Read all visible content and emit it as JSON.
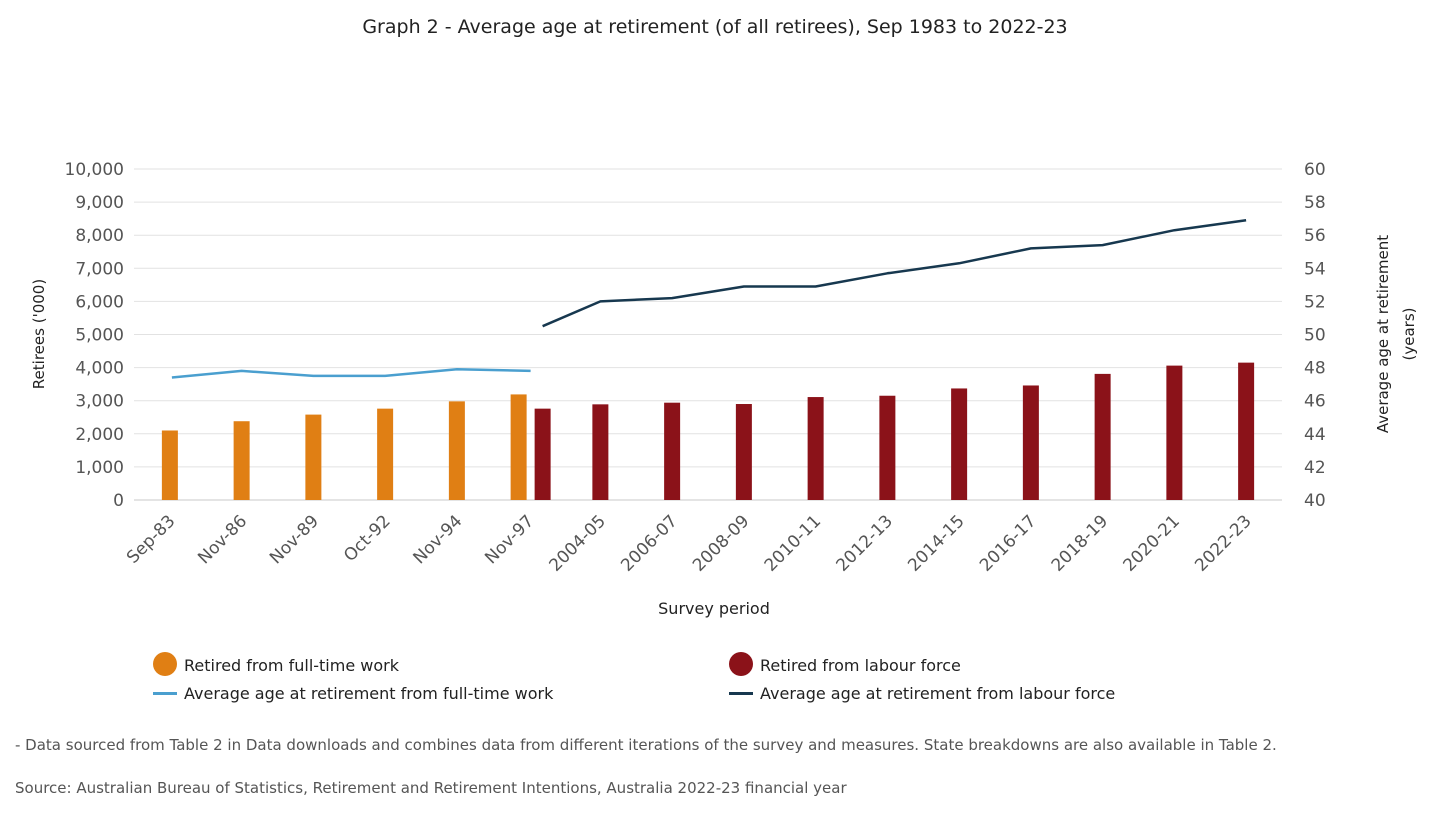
{
  "chart_data": {
    "type": "bar",
    "title": "Graph 2 - Average age at retirement (of all retirees), Sep 1983 to 2022-23",
    "xlabel": "Survey period",
    "ylabel": "Retirees ('000)",
    "y2label_line1": "Average age at retirement",
    "y2label_line2": "(years)",
    "ylim": [
      0,
      10000
    ],
    "y2lim": [
      40,
      60
    ],
    "yticks": [
      "0",
      "1,000",
      "2,000",
      "3,000",
      "4,000",
      "5,000",
      "6,000",
      "7,000",
      "8,000",
      "9,000",
      "10,000"
    ],
    "y2ticks": [
      "40",
      "42",
      "44",
      "46",
      "48",
      "50",
      "52",
      "54",
      "56",
      "58",
      "60"
    ],
    "grid": true,
    "legend_position": "bottom",
    "categories": [
      "Sep-83",
      "Nov-86",
      "Nov-89",
      "Oct-92",
      "Nov-94",
      "Nov-97",
      "2004-05",
      "2006-07",
      "2008-09",
      "2010-11",
      "2012-13",
      "2014-15",
      "2016-17",
      "2018-19",
      "2020-21",
      "2022-23"
    ],
    "series": [
      {
        "name": "Retired from full-time work",
        "kind": "bar",
        "axis": "left",
        "color": "#e07f14",
        "values": [
          2100,
          2380,
          2580,
          2760,
          2980,
          3190,
          null,
          null,
          null,
          null,
          null,
          null,
          null,
          null,
          null,
          null
        ]
      },
      {
        "name": "Retired from labour force",
        "kind": "bar",
        "axis": "left",
        "color": "#8b1219",
        "values": [
          null,
          null,
          null,
          null,
          null,
          2760,
          2890,
          2940,
          2900,
          3110,
          3150,
          3370,
          3460,
          3810,
          4060,
          4150
        ]
      },
      {
        "name": "Average age at retirement from full-time work",
        "kind": "line",
        "axis": "right",
        "color": "#4a9fcf",
        "values": [
          47.4,
          47.8,
          47.5,
          47.5,
          47.9,
          47.8,
          null,
          null,
          null,
          null,
          null,
          null,
          null,
          null,
          null,
          null
        ]
      },
      {
        "name": "Average age at retirement from labour force",
        "kind": "line",
        "axis": "right",
        "color": "#17384f",
        "values": [
          null,
          null,
          null,
          null,
          null,
          50.5,
          52.0,
          52.2,
          52.9,
          52.9,
          53.7,
          54.3,
          55.2,
          55.4,
          56.3,
          56.9
        ]
      }
    ]
  },
  "footnotes": {
    "note": "- Data sourced from Table 2 in Data downloads and combines data from different iterations of the survey and measures. State breakdowns are also available in Table 2.",
    "source": "Source: Australian Bureau of Statistics, Retirement and Retirement Intentions, Australia 2022-23 financial year"
  }
}
